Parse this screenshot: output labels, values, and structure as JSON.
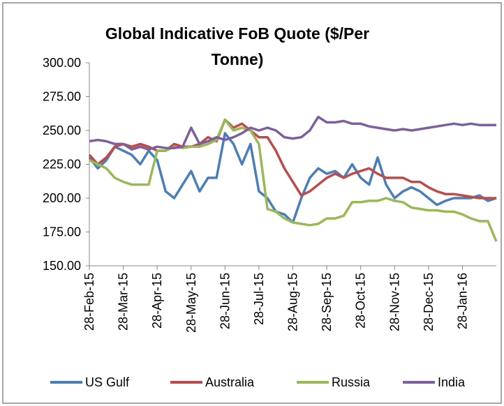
{
  "chart_data": {
    "type": "line",
    "title": "Global Indicative FoB Quote ($/Per Tonne)",
    "categories": [
      "28-Feb-15",
      null,
      null,
      null,
      "28-Mar-15",
      null,
      null,
      null,
      "28-Apr-15",
      null,
      null,
      null,
      "28-May-15",
      null,
      null,
      null,
      "28-Jun-15",
      null,
      null,
      null,
      "28-Jul-15",
      null,
      null,
      null,
      "28-Aug-15",
      null,
      null,
      null,
      "28-Sep-15",
      null,
      null,
      null,
      "28-Oct-15",
      null,
      null,
      null,
      "28-Nov-15",
      null,
      null,
      null,
      "28-Dec-15",
      null,
      null,
      null,
      "28-Jan-16",
      null,
      null,
      null,
      null
    ],
    "series": [
      {
        "name": "US Gulf",
        "color": "#4a7ebb",
        "values": [
          230,
          222,
          228,
          238,
          235,
          232,
          225,
          235,
          228,
          205,
          200,
          210,
          220,
          205,
          215,
          215,
          248,
          240,
          225,
          240,
          205,
          200,
          190,
          188,
          182,
          200,
          215,
          222,
          218,
          220,
          215,
          225,
          215,
          210,
          230,
          210,
          200,
          205,
          208,
          205,
          200,
          195,
          198,
          200,
          200,
          200,
          202,
          198,
          200
        ]
      },
      {
        "name": "Australia",
        "color": "#be4b48",
        "values": [
          232,
          225,
          230,
          238,
          240,
          238,
          240,
          238,
          235,
          235,
          240,
          238,
          238,
          240,
          245,
          242,
          258,
          252,
          255,
          250,
          245,
          245,
          235,
          222,
          212,
          202,
          205,
          210,
          215,
          218,
          215,
          218,
          220,
          222,
          218,
          215,
          215,
          215,
          212,
          212,
          208,
          205,
          203,
          203,
          202,
          201,
          200,
          200,
          200
        ]
      },
      {
        "name": "Russia",
        "color": "#98b954",
        "values": [
          228,
          225,
          222,
          215,
          212,
          210,
          210,
          210,
          235,
          235,
          238,
          237,
          238,
          238,
          240,
          243,
          258,
          250,
          252,
          250,
          240,
          192,
          190,
          185,
          182,
          181,
          180,
          181,
          185,
          185,
          187,
          197,
          197,
          198,
          198,
          200,
          198,
          197,
          193,
          192,
          191,
          191,
          190,
          190,
          188,
          185,
          183,
          183,
          168
        ]
      },
      {
        "name": "India",
        "color": "#7d5fa0",
        "values": [
          242,
          243,
          242,
          240,
          240,
          236,
          238,
          236,
          238,
          237,
          237,
          238,
          252,
          240,
          242,
          245,
          243,
          245,
          248,
          252,
          250,
          252,
          250,
          245,
          244,
          245,
          250,
          260,
          256,
          256,
          257,
          255,
          255,
          253,
          252,
          251,
          250,
          251,
          250,
          251,
          252,
          253,
          254,
          255,
          254,
          255,
          254,
          254,
          254
        ]
      }
    ],
    "ylim": [
      150,
      300
    ],
    "yticks": [
      {
        "value": 150,
        "label": "150.00"
      },
      {
        "value": 175,
        "label": "175.00"
      },
      {
        "value": 200,
        "label": "200.00"
      },
      {
        "value": 225,
        "label": "225.00"
      },
      {
        "value": 250,
        "label": "250.00"
      },
      {
        "value": 275,
        "label": "275.00"
      },
      {
        "value": 300,
        "label": "300.00"
      }
    ],
    "grid": false,
    "legend": "bottom"
  }
}
